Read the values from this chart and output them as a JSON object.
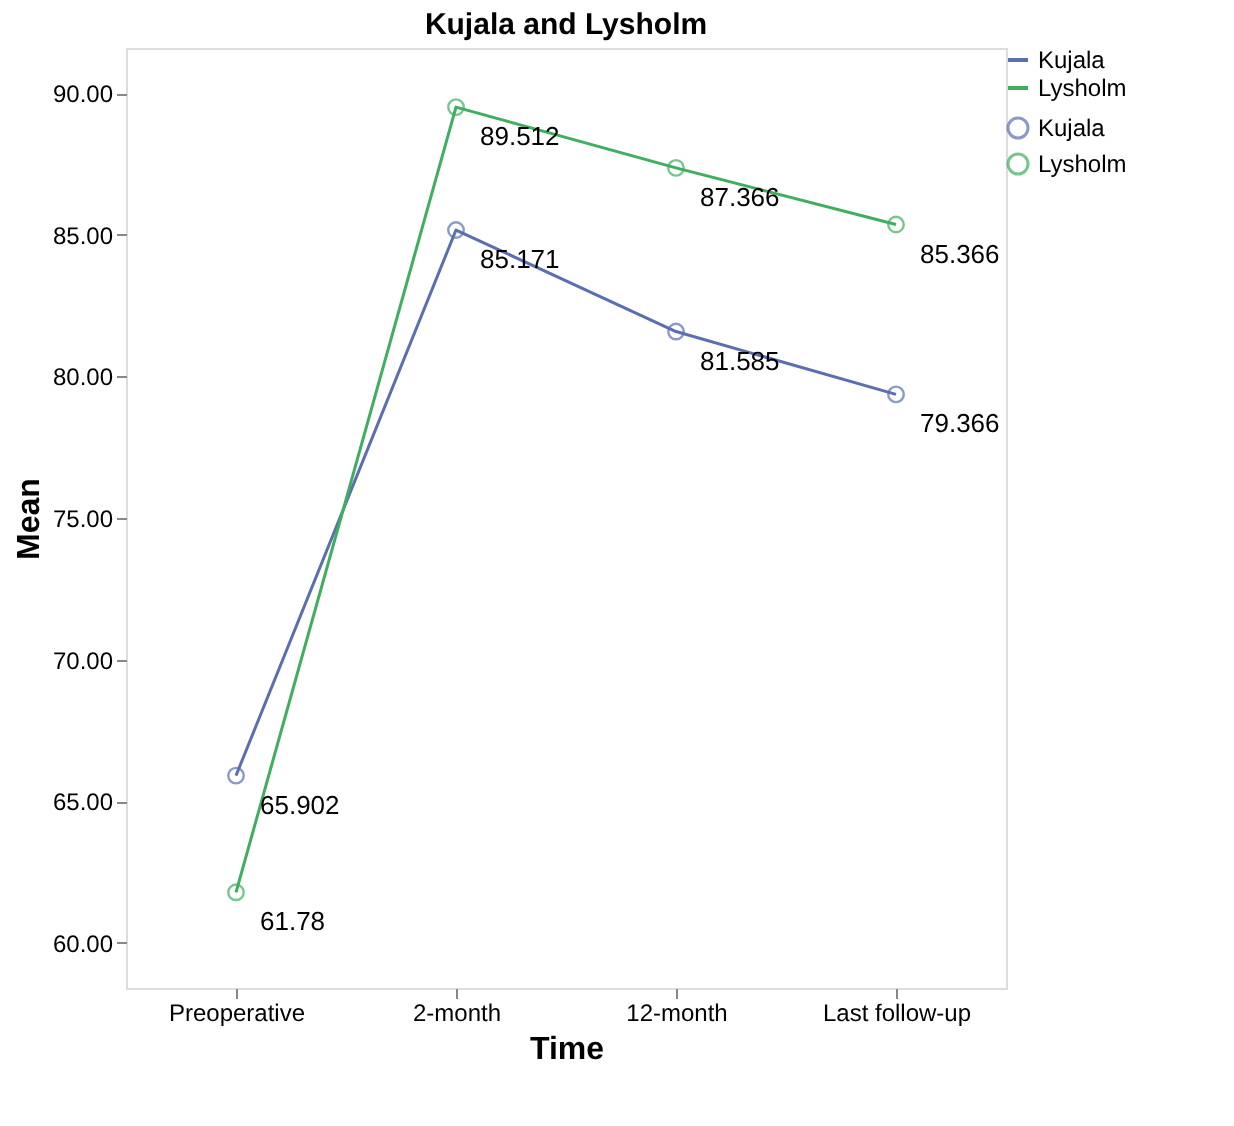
{
  "chart_data": {
    "type": "line",
    "title": "Kujala and Lysholm",
    "xlabel": "Time",
    "ylabel": "Mean",
    "categories": [
      "Preoperative",
      "2-month",
      "12-month",
      "Last follow-up"
    ],
    "series": [
      {
        "name": "Kujala",
        "color": "#5b6eb0",
        "values": [
          65.902,
          85.171,
          81.585,
          79.366
        ]
      },
      {
        "name": "Lysholm",
        "color": "#3fae5f",
        "values": [
          61.78,
          89.512,
          87.366,
          85.366
        ]
      }
    ],
    "ylim": [
      58.4,
      91.6
    ],
    "yticks": [
      {
        "value": 60,
        "label": "60.00"
      },
      {
        "value": 65,
        "label": "65.00"
      },
      {
        "value": 70,
        "label": "70.00"
      },
      {
        "value": 75,
        "label": "75.00"
      },
      {
        "value": 80,
        "label": "80.00"
      },
      {
        "value": 85,
        "label": "85.00"
      },
      {
        "value": 90,
        "label": "90.00"
      }
    ],
    "data_labels": true,
    "marker": "circle",
    "grid": false,
    "legend": "top right",
    "line_style": "solid"
  }
}
